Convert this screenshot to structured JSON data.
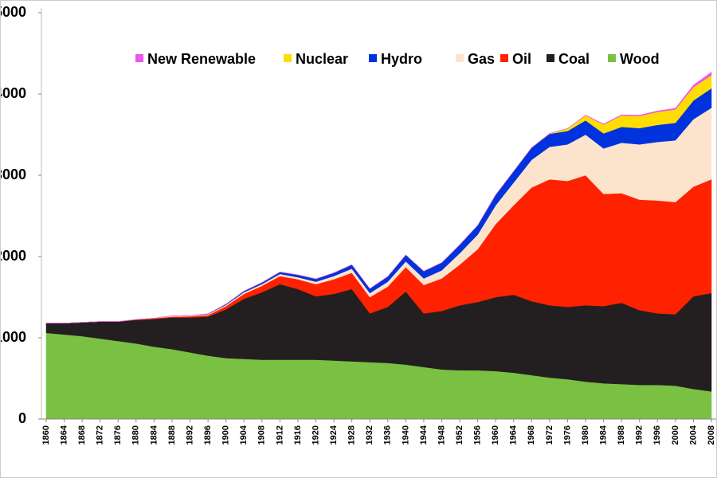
{
  "chart_data": {
    "type": "stacked_area",
    "x": [
      1860,
      1864,
      1868,
      1872,
      1876,
      1880,
      1884,
      1888,
      1892,
      1896,
      1900,
      1904,
      1908,
      1912,
      1916,
      1920,
      1924,
      1928,
      1932,
      1936,
      1940,
      1944,
      1948,
      1952,
      1956,
      1960,
      1964,
      1968,
      1972,
      1976,
      1980,
      1984,
      1988,
      1992,
      1996,
      2000,
      2004,
      2008
    ],
    "xticks": [
      1860,
      1864,
      1868,
      1872,
      1876,
      1880,
      1884,
      1888,
      1892,
      1896,
      1900,
      1904,
      1908,
      1912,
      1916,
      1920,
      1924,
      1928,
      1932,
      1936,
      1940,
      1944,
      1948,
      1952,
      1956,
      1960,
      1964,
      1968,
      1972,
      1976,
      1980,
      1984,
      1988,
      1992,
      1996,
      2000,
      2004,
      2008
    ],
    "xlim": [
      1860,
      2008
    ],
    "ylim": [
      0,
      5000
    ],
    "yticks": [
      0,
      1000,
      2000,
      3000,
      4000,
      5000
    ],
    "series": [
      {
        "name": "Wood",
        "color": "#7ac143",
        "values": [
          1060,
          1040,
          1020,
          990,
          960,
          930,
          890,
          860,
          820,
          780,
          750,
          740,
          730,
          730,
          730,
          730,
          720,
          710,
          700,
          690,
          670,
          640,
          610,
          600,
          600,
          590,
          570,
          540,
          510,
          490,
          460,
          440,
          430,
          420,
          420,
          410,
          370,
          340
        ]
      },
      {
        "name": "Coal",
        "color": "#231f20",
        "values": [
          120,
          140,
          170,
          210,
          240,
          290,
          340,
          390,
          430,
          480,
          600,
          740,
          830,
          930,
          870,
          780,
          820,
          890,
          600,
          690,
          900,
          660,
          720,
          800,
          840,
          910,
          960,
          910,
          890,
          890,
          940,
          950,
          1000,
          920,
          880,
          880,
          1140,
          1210
        ]
      },
      {
        "name": "Oil",
        "color": "#ff2200",
        "values": [
          0,
          0,
          0,
          0,
          0,
          5,
          10,
          10,
          15,
          20,
          40,
          60,
          80,
          100,
          120,
          150,
          180,
          200,
          200,
          250,
          300,
          350,
          400,
          500,
          650,
          900,
          1100,
          1400,
          1550,
          1550,
          1600,
          1380,
          1350,
          1360,
          1390,
          1380,
          1350,
          1400
        ]
      },
      {
        "name": "Gas",
        "color": "#fce4cc",
        "values": [
          0,
          0,
          0,
          0,
          0,
          0,
          0,
          10,
          10,
          10,
          15,
          20,
          20,
          25,
          25,
          30,
          40,
          50,
          50,
          60,
          70,
          80,
          100,
          140,
          180,
          230,
          280,
          340,
          400,
          450,
          500,
          560,
          620,
          680,
          720,
          760,
          830,
          880
        ]
      },
      {
        "name": "Hydro",
        "color": "#0033dd",
        "values": [
          0,
          0,
          0,
          0,
          0,
          0,
          0,
          0,
          0,
          5,
          10,
          15,
          20,
          25,
          30,
          35,
          40,
          50,
          55,
          65,
          80,
          90,
          95,
          105,
          115,
          130,
          140,
          150,
          160,
          165,
          175,
          185,
          195,
          200,
          210,
          215,
          230,
          240
        ]
      },
      {
        "name": "Nuclear",
        "color": "#ffdd00",
        "values": [
          0,
          0,
          0,
          0,
          0,
          0,
          0,
          0,
          0,
          0,
          0,
          0,
          0,
          0,
          0,
          0,
          0,
          0,
          0,
          0,
          0,
          0,
          0,
          0,
          0,
          0,
          0,
          0,
          5,
          30,
          60,
          110,
          140,
          150,
          160,
          165,
          165,
          160
        ]
      },
      {
        "name": "New Renewable",
        "color": "#ee55ee",
        "values": [
          0,
          0,
          0,
          0,
          0,
          0,
          0,
          0,
          0,
          0,
          0,
          0,
          0,
          0,
          0,
          0,
          0,
          0,
          0,
          0,
          0,
          0,
          0,
          0,
          0,
          0,
          0,
          0,
          0,
          2,
          5,
          7,
          9,
          10,
          12,
          15,
          25,
          40
        ]
      }
    ]
  }
}
